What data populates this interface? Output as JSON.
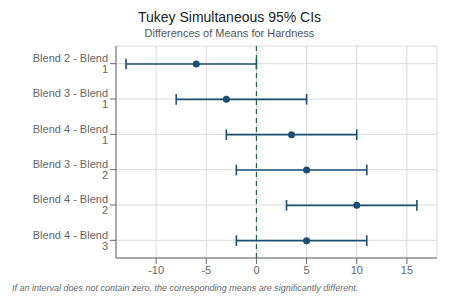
{
  "chart_data": {
    "type": "interval",
    "orientation": "horizontal",
    "title": "Tukey Simultaneous 95% CIs",
    "subtitle": "Differences of Means for Hardness",
    "footnote": "If an interval does not contain zero, the corresponding means are significantly different.",
    "categories": [
      "Blend 2 - Blend 1",
      "Blend 3 - Blend 1",
      "Blend 4 - Blend 1",
      "Blend 3 - Blend 2",
      "Blend 4 - Blend 2",
      "Blend 4 - Blend 3"
    ],
    "values": [
      -6,
      -3,
      3.5,
      5,
      10,
      5
    ],
    "lower": [
      -13,
      -8,
      -3,
      -2,
      3,
      -2
    ],
    "upper": [
      0,
      5,
      10,
      11,
      16,
      11
    ],
    "color": "#1b4f72",
    "marker": "circle",
    "reference_line": {
      "value": 0,
      "color": "#1a6b3c",
      "line_style": "dashed"
    },
    "xlim": [
      -14,
      18
    ],
    "xticks": [
      -10,
      -5,
      0,
      5,
      10,
      15
    ],
    "grid": true
  }
}
